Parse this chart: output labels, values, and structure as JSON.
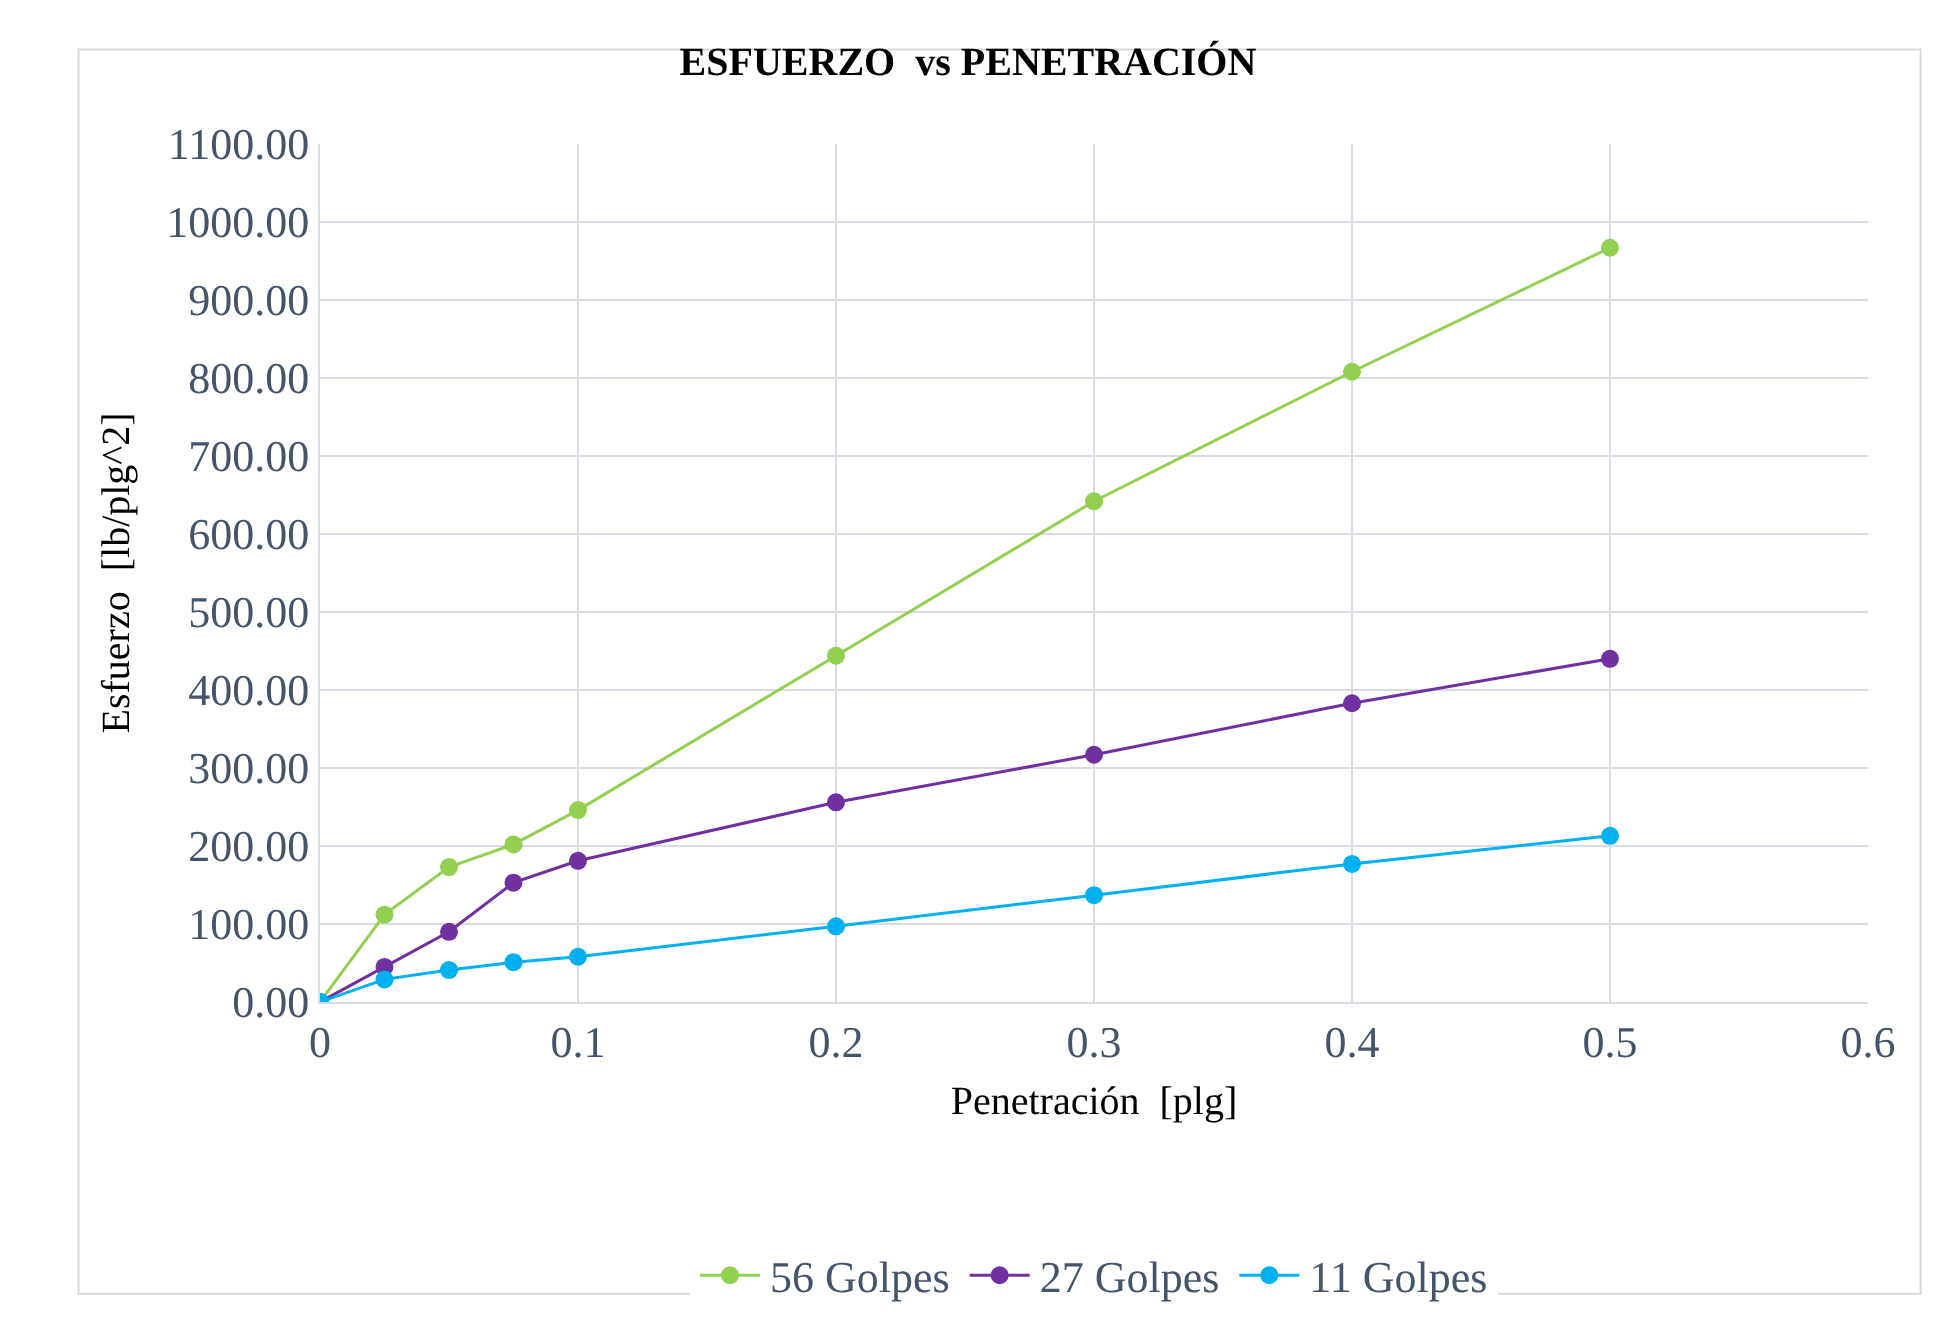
{
  "chart_data": {
    "type": "line",
    "title": "ESFUERZO  vs PENETRACIÓN",
    "xlabel": "Penetración  [plg]",
    "ylabel": "Esfuerzo  [lb/plg^2]",
    "x": [
      0,
      0.025,
      0.05,
      0.075,
      0.1,
      0.2,
      0.3,
      0.4,
      0.5
    ],
    "series": [
      {
        "name": "56 Golpes",
        "color": "#92d050",
        "values": [
          0,
          112,
          173,
          202,
          246,
          444,
          642,
          808,
          967
        ]
      },
      {
        "name": "27 Golpes",
        "color": "#7030a0",
        "values": [
          0,
          45,
          90,
          153,
          181,
          256,
          317,
          383,
          440
        ]
      },
      {
        "name": "11 Golpes",
        "color": "#00b0f0",
        "values": [
          0,
          29,
          41,
          51,
          58,
          97,
          137,
          177,
          213
        ]
      }
    ],
    "xlim": [
      0,
      0.6
    ],
    "xticks": [
      0,
      0.1,
      0.2,
      0.3,
      0.4,
      0.5,
      0.6
    ],
    "ylim": [
      0,
      1100
    ],
    "yticks": [
      {
        "value": 0,
        "label": "0.00"
      },
      {
        "value": 100,
        "label": "100.00"
      },
      {
        "value": 200,
        "label": "200.00"
      },
      {
        "value": 300,
        "label": "300.00"
      },
      {
        "value": 400,
        "label": "400.00"
      },
      {
        "value": 500,
        "label": "500.00"
      },
      {
        "value": 600,
        "label": "600.00"
      },
      {
        "value": 700,
        "label": "700.00"
      },
      {
        "value": 800,
        "label": "800.00"
      },
      {
        "value": 900,
        "label": "900.00"
      },
      {
        "value": 1000,
        "label": "1000.00"
      },
      {
        "value": 1100,
        "label": "1100.00"
      }
    ],
    "grid": true,
    "legend": "bottom",
    "marker": "circle",
    "line_style": "solid"
  }
}
